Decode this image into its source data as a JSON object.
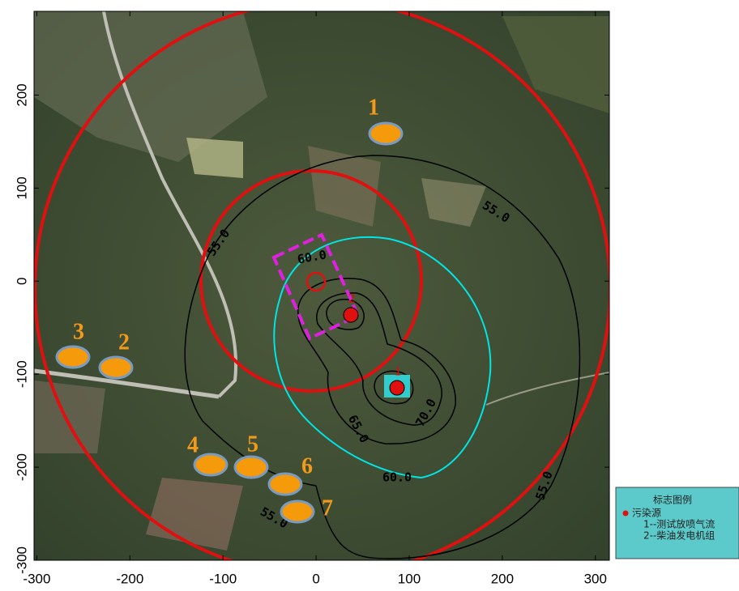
{
  "map": {
    "xlim": [
      -303,
      315
    ],
    "ylim": [
      -300,
      290
    ],
    "xticks": [
      -300,
      -200,
      -100,
      0,
      100,
      200,
      300
    ],
    "yticks": [
      -300,
      -200,
      -100,
      0,
      100,
      200
    ],
    "contour_labels": [
      "55.0",
      "55.0",
      "55.0",
      "55.0",
      "60.0",
      "60.0",
      "65.0",
      "70.0"
    ],
    "receptors": [
      "1",
      "2",
      "3",
      "4",
      "5",
      "6",
      "7"
    ],
    "sources": [
      "1",
      "2"
    ],
    "legend": {
      "title": "标志图例",
      "item": "污染源",
      "entries": [
        "1--测试放喷气流",
        "2--柴油发电机组"
      ]
    }
  }
}
